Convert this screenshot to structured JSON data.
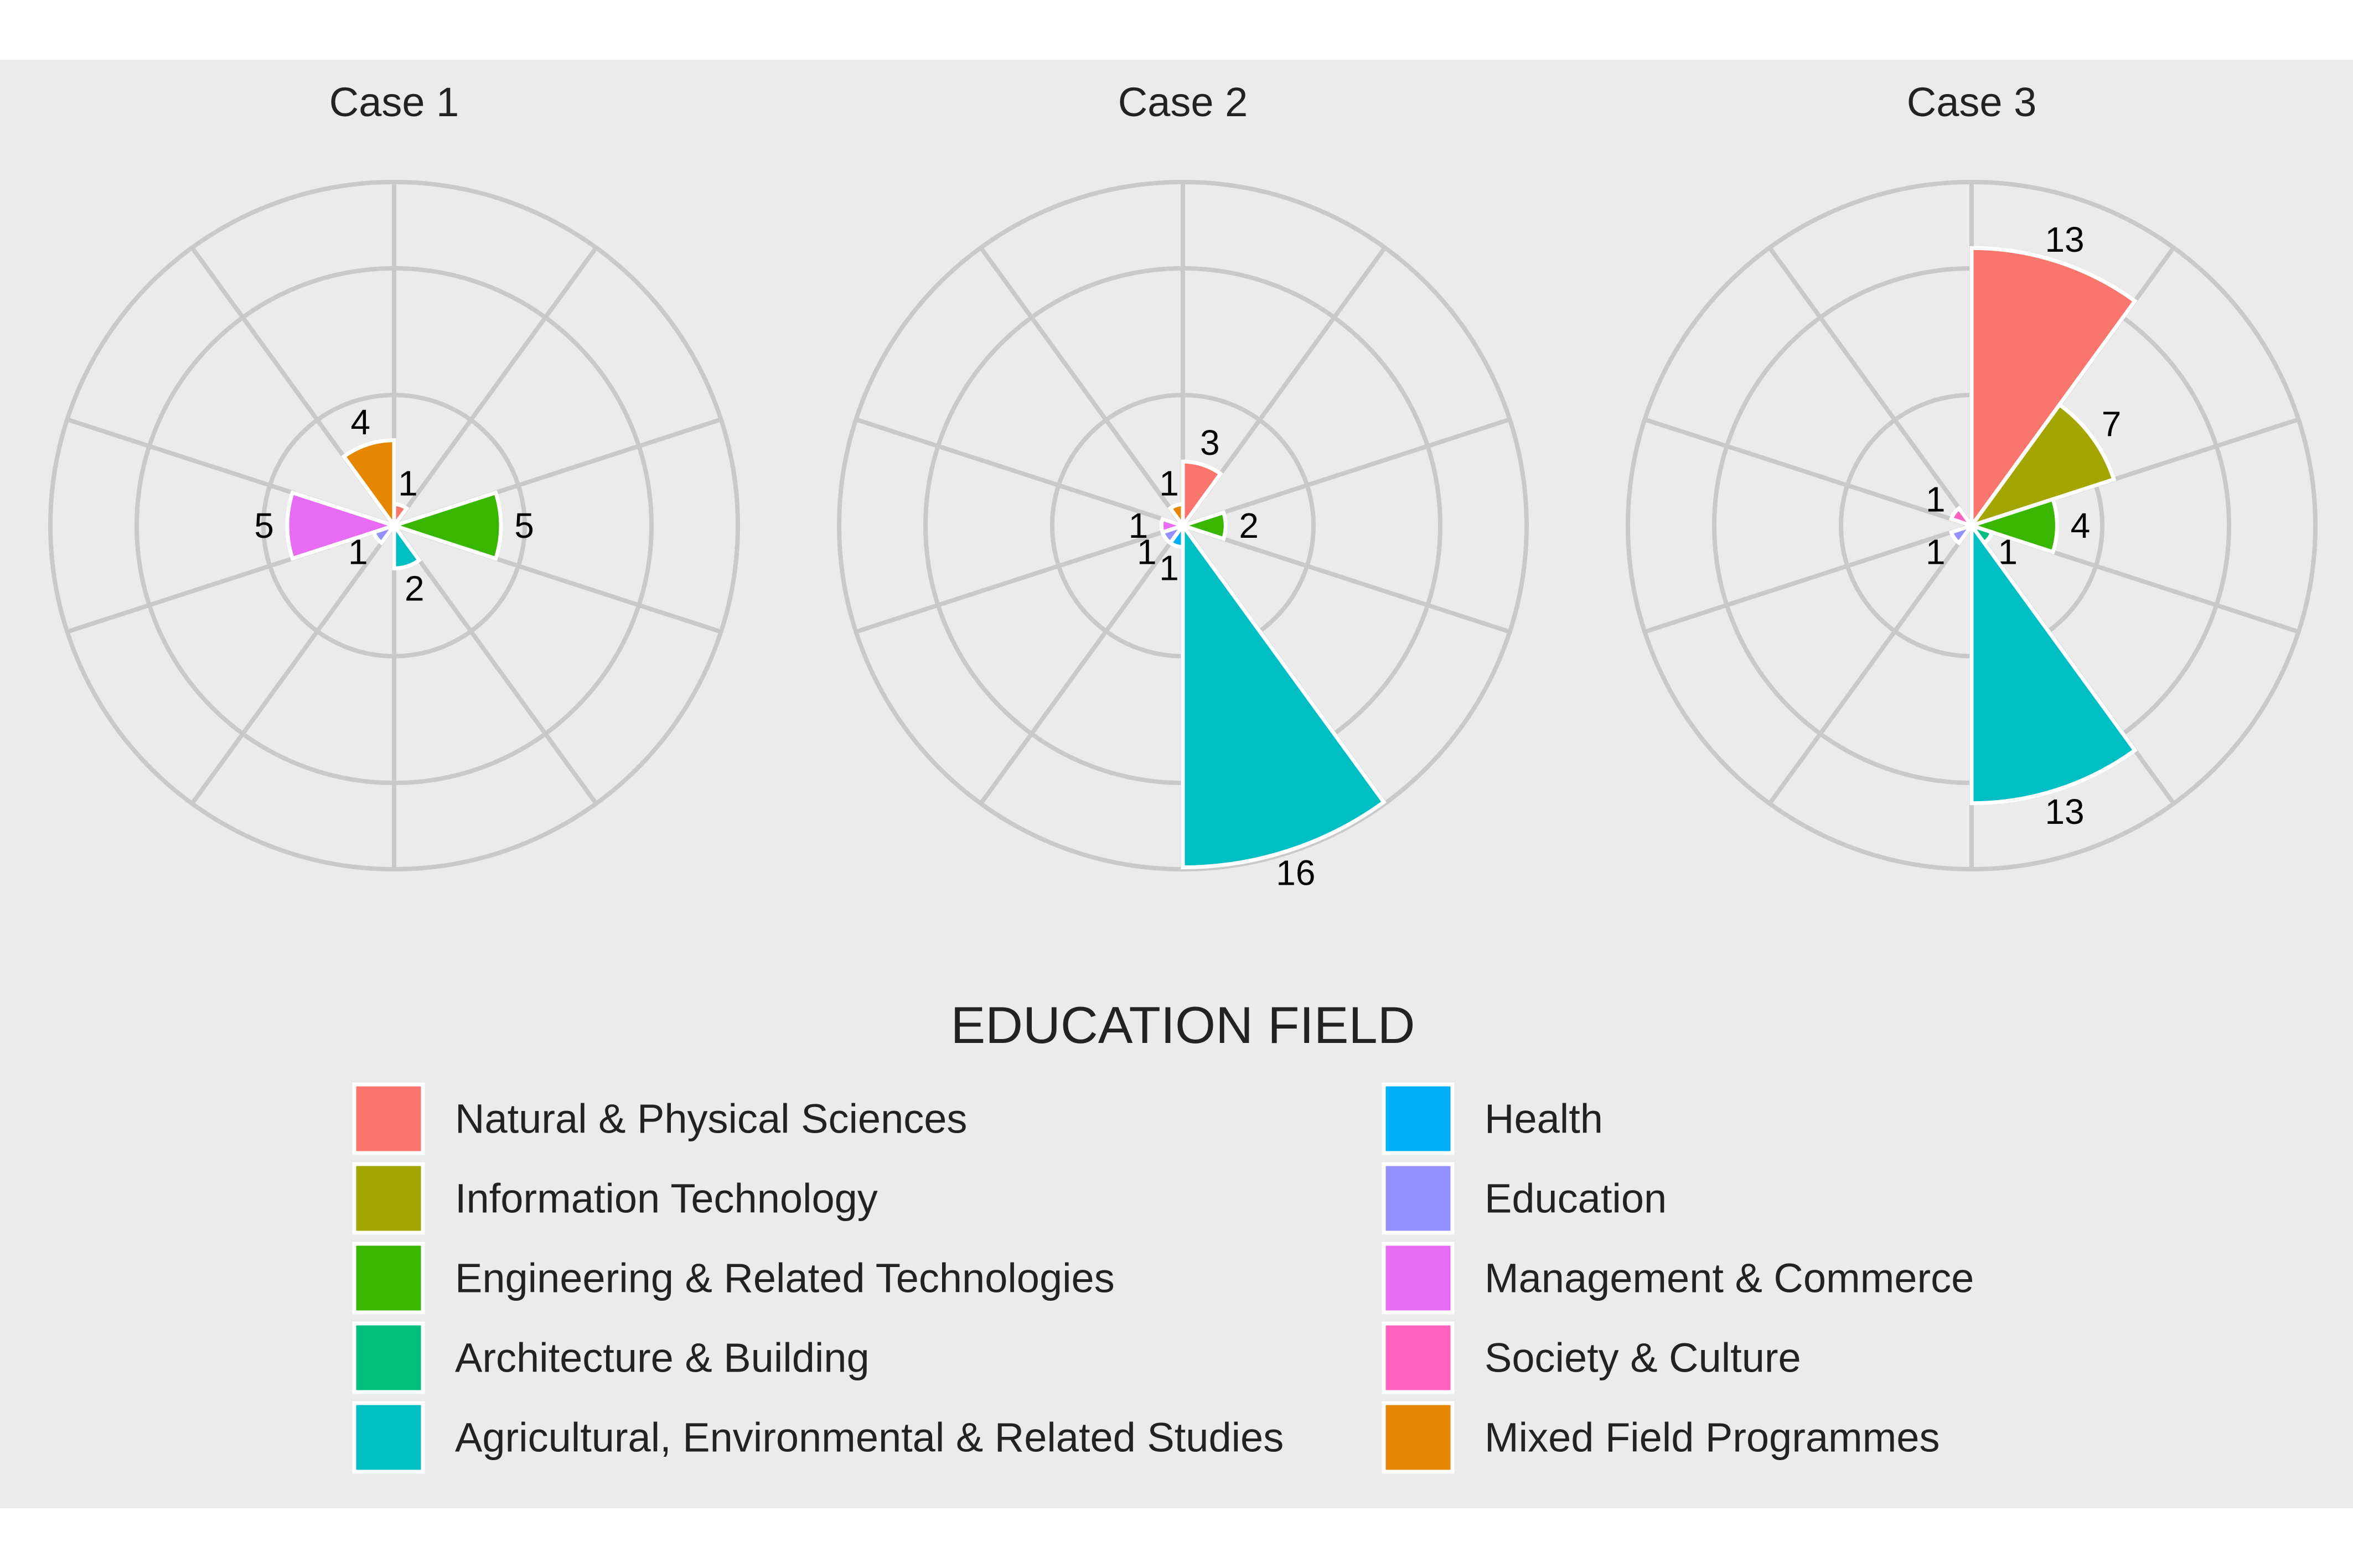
{
  "chart_data": {
    "type": "polar-bar",
    "categories": [
      "Natural & Physical Sciences",
      "Information Technology",
      "Engineering & Related Technologies",
      "Architecture & Building",
      "Agricultural, Environmental & Related Studies",
      "Health",
      "Education",
      "Management & Commerce",
      "Society & Culture",
      "Mixed Field Programmes"
    ],
    "colors": [
      "#F8766D",
      "#A3A500",
      "#39B600",
      "#00BF7D",
      "#00BFC4",
      "#00B0F6",
      "#9590FF",
      "#E76BF3",
      "#FF62BC",
      "#E58700"
    ],
    "rlim": [
      0,
      16
    ],
    "grid": true,
    "panels": [
      {
        "title": "Case 1",
        "values": [
          1,
          0,
          5,
          0,
          2,
          0,
          1,
          5,
          0,
          4
        ]
      },
      {
        "title": "Case 2",
        "values": [
          3,
          0,
          2,
          0,
          16,
          1,
          1,
          1,
          0,
          1
        ]
      },
      {
        "title": "Case 3",
        "values": [
          13,
          7,
          4,
          1,
          13,
          0,
          1,
          0,
          1,
          0
        ]
      }
    ],
    "legend": {
      "title": "EDUCATION FIELD",
      "position": "bottom",
      "columns": [
        [
          "Natural & Physical Sciences",
          "Information Technology",
          "Engineering & Related Technologies",
          "Architecture & Building",
          "Agricultural, Environmental & Related Studies"
        ],
        [
          "Health",
          "Education",
          "Management & Commerce",
          "Society & Culture",
          "Mixed Field Programmes"
        ]
      ]
    }
  }
}
